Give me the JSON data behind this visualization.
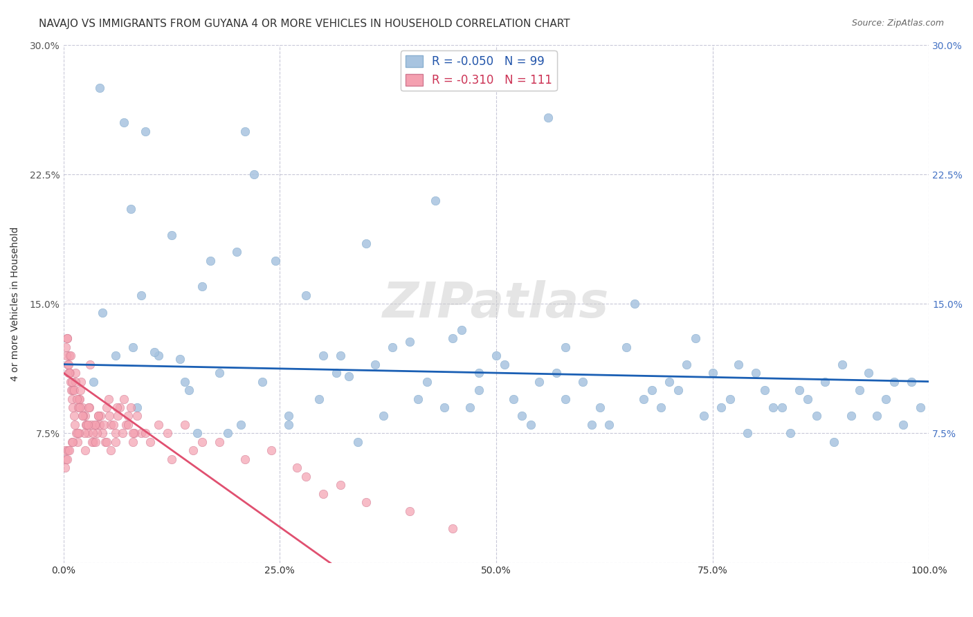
{
  "title": "NAVAJO VS IMMIGRANTS FROM GUYANA 4 OR MORE VEHICLES IN HOUSEHOLD CORRELATION CHART",
  "source": "Source: ZipAtlas.com",
  "xlabel": "",
  "ylabel": "4 or more Vehicles in Household",
  "xlim": [
    0,
    100
  ],
  "ylim": [
    0,
    30
  ],
  "xticks": [
    0,
    25,
    50,
    75,
    100
  ],
  "xtick_labels": [
    "0.0%",
    "25.0%",
    "50.0%",
    "75.0%",
    "100.0%"
  ],
  "yticks": [
    0,
    7.5,
    15,
    22.5,
    30
  ],
  "ytick_labels": [
    "",
    "7.5%",
    "15.0%",
    "22.5%",
    "30.0%"
  ],
  "navajo_R": -0.05,
  "navajo_N": 99,
  "guyana_R": -0.31,
  "guyana_N": 111,
  "navajo_color": "#a8c4e0",
  "guyana_color": "#f4a0b0",
  "navajo_line_color": "#1a5fb4",
  "guyana_line_color": "#e05070",
  "background_color": "#ffffff",
  "grid_color": "#c8c8d8",
  "navajo_x": [
    4.2,
    7.0,
    9.5,
    7.8,
    4.5,
    8.0,
    11.0,
    13.5,
    16.0,
    18.0,
    14.0,
    10.5,
    22.0,
    12.5,
    17.0,
    20.0,
    24.5,
    28.0,
    30.0,
    35.0,
    38.0,
    33.0,
    26.0,
    40.0,
    36.0,
    45.0,
    42.0,
    48.0,
    50.0,
    52.0,
    48.0,
    55.0,
    58.0,
    53.0,
    60.0,
    62.0,
    65.0,
    58.0,
    70.0,
    68.0,
    72.0,
    75.0,
    78.0,
    80.0,
    77.0,
    82.0,
    85.0,
    88.0,
    83.0,
    90.0,
    92.0,
    86.0,
    95.0,
    98.0,
    93.0,
    6.0,
    14.5,
    19.0,
    23.0,
    29.5,
    31.5,
    37.0,
    44.0,
    46.0,
    54.0,
    61.0,
    66.0,
    71.0,
    76.0,
    81.0,
    87.0,
    91.0,
    96.0,
    3.5,
    8.5,
    15.5,
    20.5,
    26.0,
    34.0,
    41.0,
    47.0,
    51.0,
    57.0,
    63.0,
    69.0,
    74.0,
    79.0,
    84.0,
    89.0,
    94.0,
    97.0,
    9.0,
    21.0,
    32.0,
    43.0,
    56.0,
    67.0,
    73.0,
    99.0
  ],
  "navajo_y": [
    27.5,
    25.5,
    25.0,
    20.5,
    14.5,
    12.5,
    12.0,
    11.8,
    16.0,
    11.0,
    10.5,
    12.2,
    22.5,
    19.0,
    17.5,
    18.0,
    17.5,
    15.5,
    12.0,
    18.5,
    12.5,
    10.8,
    8.5,
    12.8,
    11.5,
    13.0,
    10.5,
    10.0,
    12.0,
    9.5,
    11.0,
    10.5,
    12.5,
    8.5,
    10.5,
    9.0,
    12.5,
    9.5,
    10.5,
    10.0,
    11.5,
    11.0,
    11.5,
    11.0,
    9.5,
    9.0,
    10.0,
    10.5,
    9.0,
    11.5,
    10.0,
    9.5,
    9.5,
    10.5,
    11.0,
    12.0,
    10.0,
    7.5,
    10.5,
    9.5,
    11.0,
    8.5,
    9.0,
    13.5,
    8.0,
    8.0,
    15.0,
    10.0,
    9.0,
    10.0,
    8.5,
    8.5,
    10.5,
    10.5,
    9.0,
    7.5,
    8.0,
    8.0,
    7.0,
    9.5,
    9.0,
    11.5,
    11.0,
    8.0,
    9.0,
    8.5,
    7.5,
    7.5,
    7.0,
    8.5,
    8.0,
    15.5,
    25.0,
    12.0,
    21.0,
    25.8,
    9.5,
    13.0,
    9.0
  ],
  "guyana_x": [
    0.5,
    0.8,
    1.0,
    1.2,
    1.5,
    0.3,
    0.6,
    0.9,
    1.1,
    1.3,
    1.6,
    2.0,
    2.2,
    2.5,
    2.8,
    3.0,
    3.2,
    3.5,
    4.0,
    4.5,
    5.0,
    5.5,
    6.0,
    6.5,
    7.0,
    7.5,
    8.0,
    1.8,
    2.4,
    3.8,
    0.4,
    0.7,
    1.4,
    1.9,
    2.6,
    3.3,
    4.2,
    5.2,
    6.2,
    7.2,
    0.2,
    0.55,
    1.05,
    1.7,
    2.3,
    3.6,
    4.8,
    0.35,
    0.75,
    1.25,
    1.85,
    2.7,
    3.9,
    5.3,
    0.45,
    0.85,
    1.35,
    1.95,
    2.9,
    4.3,
    5.8,
    6.8,
    7.8,
    8.5,
    9.0,
    10.0,
    11.0,
    12.0,
    14.0,
    16.0,
    3.1,
    4.7,
    6.3,
    8.2,
    0.65,
    0.95,
    1.55,
    2.15,
    3.4,
    5.0,
    7.5,
    0.25,
    0.5,
    1.0,
    1.8,
    2.8,
    4.0,
    6.0,
    9.5,
    0.15,
    0.4,
    0.7,
    1.1,
    1.6,
    2.5,
    3.7,
    5.5,
    8.0,
    12.5,
    15.0,
    18.0,
    21.0,
    24.0,
    27.0,
    30.0,
    35.0,
    40.0,
    45.0,
    28.0,
    32.0
  ],
  "guyana_y": [
    11.5,
    10.5,
    9.5,
    8.5,
    7.5,
    12.5,
    11.0,
    10.0,
    9.0,
    8.0,
    7.0,
    10.5,
    9.0,
    8.5,
    7.5,
    9.0,
    8.0,
    7.0,
    8.5,
    7.5,
    9.0,
    8.0,
    7.5,
    9.0,
    9.5,
    8.5,
    7.0,
    9.5,
    7.5,
    8.0,
    13.0,
    12.0,
    10.5,
    9.5,
    8.0,
    7.0,
    8.0,
    9.5,
    9.0,
    8.0,
    6.5,
    11.5,
    10.0,
    9.0,
    8.5,
    8.0,
    7.0,
    12.0,
    11.0,
    10.0,
    9.0,
    8.0,
    7.5,
    8.5,
    13.0,
    12.0,
    11.0,
    10.0,
    9.0,
    8.5,
    8.0,
    7.5,
    9.0,
    8.5,
    7.5,
    7.0,
    8.0,
    7.5,
    8.0,
    7.0,
    11.5,
    8.0,
    8.5,
    7.5,
    11.0,
    10.5,
    9.5,
    8.5,
    7.5,
    7.0,
    8.0,
    6.0,
    6.5,
    7.0,
    7.5,
    8.0,
    8.5,
    7.0,
    7.5,
    5.5,
    6.0,
    6.5,
    7.0,
    7.5,
    6.5,
    7.0,
    6.5,
    7.5,
    6.0,
    6.5,
    7.0,
    6.0,
    6.5,
    5.5,
    4.0,
    3.5,
    3.0,
    2.0,
    5.0,
    4.5
  ],
  "watermark": "ZIPatlas",
  "title_fontsize": 11,
  "axis_label_fontsize": 10,
  "tick_fontsize": 10,
  "legend_fontsize": 11,
  "source_fontsize": 9
}
